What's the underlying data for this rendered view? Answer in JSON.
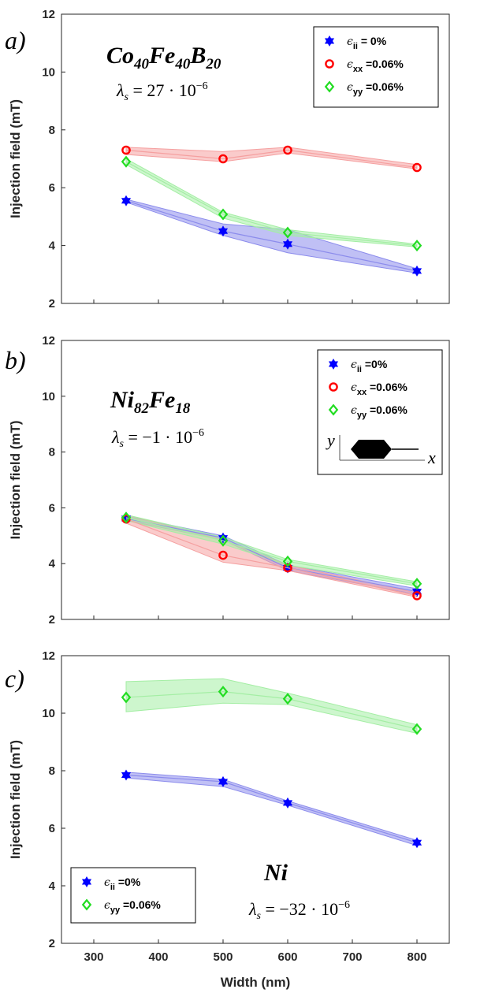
{
  "chart_data": [
    {
      "type": "line",
      "panel_label": "a)",
      "material": {
        "base": "Co",
        "s1": "40",
        "b2": "Fe",
        "s2": "40",
        "b3": "B",
        "s3": "20"
      },
      "lambda": {
        "lhs": "λ",
        "sub": "s",
        "rhs": " = 27 · 10",
        "exp": "−6"
      },
      "ylabel": "Injection field (mT)",
      "xlabel": "",
      "xlim": [
        250,
        850
      ],
      "ylim": [
        2,
        12
      ],
      "xticks": [
        300,
        400,
        500,
        600,
        700,
        800
      ],
      "yticks": [
        2,
        4,
        6,
        8,
        10,
        12
      ],
      "x": [
        350,
        500,
        600,
        800
      ],
      "legend_position": "top-right",
      "series": [
        {
          "name": "ϵii = 0%",
          "sym": "ϵ",
          "sub": "ii",
          "text": " = 0%",
          "marker": "star",
          "color": "#0000ff",
          "band": "#8c8cec",
          "values": [
            5.55,
            4.5,
            4.05,
            3.12
          ],
          "upper": [
            5.6,
            4.75,
            4.55,
            3.2
          ],
          "lower": [
            5.5,
            4.35,
            3.75,
            3.05
          ]
        },
        {
          "name": "ϵxx =0.06%",
          "sym": "ϵ",
          "sub": "xx",
          "text": " =0.06%",
          "marker": "circle",
          "color": "#ff0000",
          "band": "#f5a0a0",
          "values": [
            7.3,
            7.0,
            7.3,
            6.7
          ],
          "upper": [
            7.4,
            7.25,
            7.4,
            6.8
          ],
          "lower": [
            7.15,
            6.9,
            7.2,
            6.65
          ]
        },
        {
          "name": "ϵyy =0.06%",
          "sym": "ϵ",
          "sub": "yy",
          "text": " =0.06%",
          "marker": "diamond",
          "color": "#22dd22",
          "band": "#a4eea4",
          "values": [
            6.9,
            5.08,
            4.45,
            4.0
          ],
          "upper": [
            7.0,
            5.15,
            4.55,
            4.05
          ],
          "lower": [
            6.8,
            4.95,
            4.35,
            3.95
          ]
        }
      ]
    },
    {
      "type": "line",
      "panel_label": "b)",
      "material": {
        "base": "Ni",
        "s1": "82",
        "b2": "Fe",
        "s2": "18"
      },
      "lambda": {
        "lhs": "λ",
        "sub": "s",
        "rhs": " = −1 · 10",
        "exp": "−6"
      },
      "ylabel": "Injection field (mT)",
      "xlabel": "",
      "xlim": [
        250,
        850
      ],
      "ylim": [
        2,
        12
      ],
      "xticks": [
        300,
        400,
        500,
        600,
        700,
        800
      ],
      "yticks": [
        2,
        4,
        6,
        8,
        10,
        12
      ],
      "x": [
        350,
        500,
        600,
        800
      ],
      "legend_position": "top-right",
      "inset": {
        "y_label": "y",
        "x_label": "x"
      },
      "series": [
        {
          "name": "ϵii =0%",
          "sym": "ϵ",
          "sub": "ii",
          "text": " =0%",
          "marker": "star",
          "color": "#0000ff",
          "band": "#8c8cec",
          "values": [
            5.62,
            4.92,
            3.85,
            3.0
          ],
          "upper": [
            5.7,
            5.0,
            3.95,
            3.1
          ],
          "lower": [
            5.55,
            4.85,
            3.75,
            2.9
          ]
        },
        {
          "name": "ϵxx =0.06%",
          "sym": "ϵ",
          "sub": "xx",
          "text": " =0.06%",
          "marker": "circle",
          "color": "#ff0000",
          "band": "#f5a0a0",
          "values": [
            5.6,
            4.3,
            3.85,
            2.85
          ],
          "upper": [
            5.75,
            4.85,
            3.95,
            2.95
          ],
          "lower": [
            5.45,
            4.05,
            3.75,
            2.8
          ]
        },
        {
          "name": "ϵyy =0.06%",
          "sym": "ϵ",
          "sub": "yy",
          "text": " =0.06%",
          "marker": "diamond",
          "color": "#22dd22",
          "band": "#a4eea4",
          "values": [
            5.65,
            4.82,
            4.08,
            3.28
          ],
          "upper": [
            5.75,
            4.95,
            4.15,
            3.35
          ],
          "lower": [
            5.55,
            4.7,
            3.95,
            3.2
          ]
        }
      ]
    },
    {
      "type": "line",
      "panel_label": "c)",
      "material": {
        "base": "Ni"
      },
      "lambda": {
        "lhs": "λ",
        "sub": "s",
        "rhs": " = −32 · 10",
        "exp": "−6"
      },
      "ylabel": "Injection field (mT)",
      "xlabel": "Width (nm)",
      "xlim": [
        250,
        850
      ],
      "ylim": [
        2,
        12
      ],
      "xticks": [
        300,
        400,
        500,
        600,
        700,
        800
      ],
      "yticks": [
        2,
        4,
        6,
        8,
        10,
        12
      ],
      "x": [
        350,
        500,
        600,
        800
      ],
      "legend_position": "bottom-left",
      "series": [
        {
          "name": "ϵii =0%",
          "sym": "ϵ",
          "sub": "ii",
          "text": " =0%",
          "marker": "star",
          "color": "#0000ff",
          "band": "#8c8cec",
          "values": [
            7.85,
            7.62,
            6.88,
            5.5
          ],
          "upper": [
            7.95,
            7.7,
            6.95,
            5.58
          ],
          "lower": [
            7.75,
            7.45,
            6.8,
            5.4
          ]
        },
        {
          "name": "ϵyy =0.06%",
          "sym": "ϵ",
          "sub": "yy",
          "text": " =0.06%",
          "marker": "diamond",
          "color": "#22dd22",
          "band": "#a4eea4",
          "values": [
            10.55,
            10.75,
            10.5,
            9.45
          ],
          "upper": [
            11.1,
            11.2,
            10.7,
            9.6
          ],
          "lower": [
            10.05,
            10.35,
            10.3,
            9.3
          ]
        }
      ]
    }
  ]
}
